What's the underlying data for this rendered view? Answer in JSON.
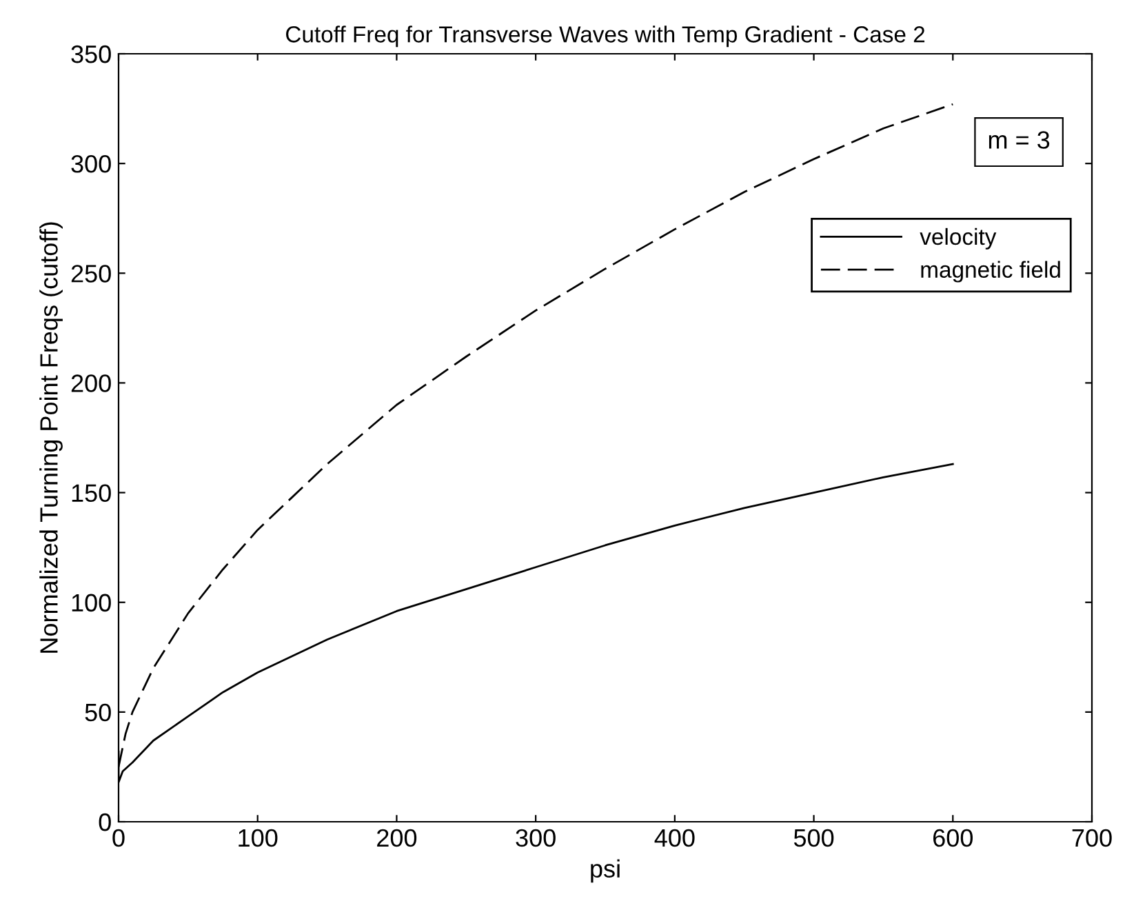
{
  "chart_data": {
    "type": "line",
    "title": "Cutoff Freq for Transverse Waves with Temp Gradient - Case 2",
    "xlabel": "psi",
    "ylabel": "Normalized Turning Point Freqs (cutoff)",
    "annotations": [
      "m = 3"
    ],
    "series": [
      {
        "name": "velocity",
        "color": "#000000",
        "line_style": "solid",
        "x": [
          0,
          0,
          3,
          10,
          25,
          50,
          75,
          100,
          150,
          200,
          250,
          300,
          350,
          400,
          450,
          500,
          550,
          600
        ],
        "values": [
          32,
          18,
          23,
          27,
          37,
          48,
          59,
          68,
          83,
          96,
          106,
          116,
          126,
          135,
          143,
          150,
          157,
          163
        ]
      },
      {
        "name": "magnetic field",
        "color": "#000000",
        "line_style": "dashed",
        "x": [
          0,
          5,
          10,
          25,
          50,
          75,
          100,
          150,
          200,
          250,
          300,
          350,
          400,
          450,
          500,
          550,
          600
        ],
        "values": [
          25,
          40,
          50,
          70,
          95,
          115,
          133,
          163,
          190,
          212,
          233,
          252,
          270,
          287,
          302,
          316,
          327
        ]
      }
    ],
    "xlim": [
      0,
      700
    ],
    "xticks": [
      0,
      100,
      200,
      300,
      400,
      500,
      600,
      700
    ],
    "ylim": [
      0,
      350
    ],
    "yticks": [
      0,
      50,
      100,
      150,
      200,
      250,
      300,
      350
    ],
    "legend": "top right",
    "grid": false,
    "marker": "none"
  }
}
